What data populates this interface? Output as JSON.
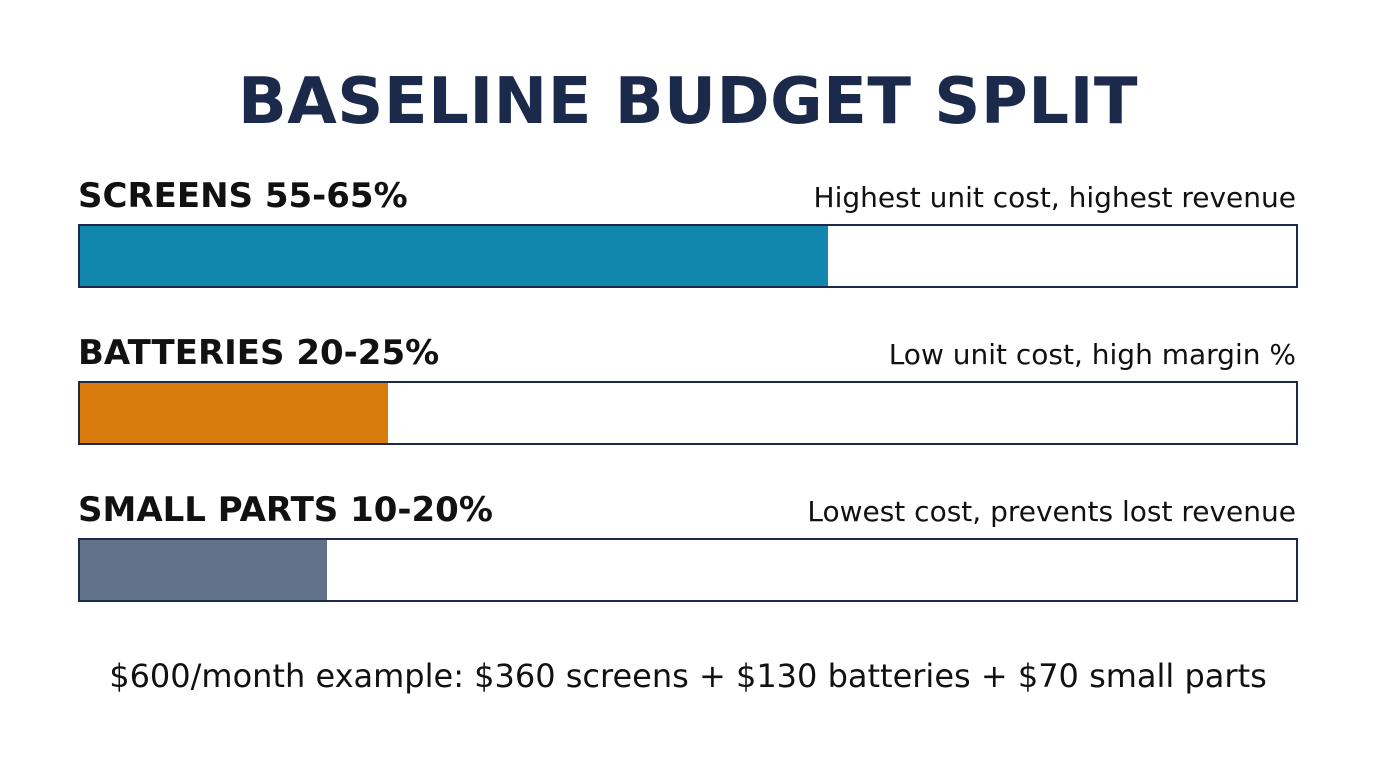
{
  "chart_data": {
    "type": "bar",
    "orientation": "horizontal",
    "title": "BASELINE BUDGET SPLIT",
    "xlim": [
      0,
      100
    ],
    "grid": false,
    "categories": [
      "SCREENS 55-65%",
      "BATTERIES 20-25%",
      "SMALL PARTS 10-20%"
    ],
    "values": [
      61.5,
      25.3,
      20.3
    ],
    "notes": [
      "Highest unit cost, highest revenue",
      "Low unit cost, high margin %",
      "Lowest cost, prevents lost revenue"
    ],
    "colors": [
      "#1187ad",
      "#d97b0c",
      "#627289"
    ],
    "footer": "$600/month example: $360 screens + $130 batteries + $70 small parts"
  }
}
